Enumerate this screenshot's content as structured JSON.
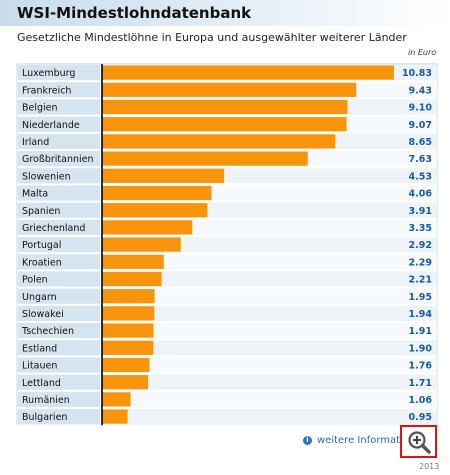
{
  "header": {
    "title": "WSI-Mindestlohndatenbank",
    "subtitle": "Gesetzliche Mindestlöhne in Europa und ausgewählter weiterer Länder",
    "unit": "in Euro"
  },
  "footer": {
    "info_link": "weitere Informat",
    "year": "2013"
  },
  "colors": {
    "bar": "#f7940c",
    "label_bg": "#d6e4f0",
    "row_alt": "#eef3f8",
    "value_text": "#1b5aa0",
    "zoom_border": "#e0101a"
  },
  "icons": [
    "info-icon",
    "zoom-in-icon"
  ],
  "chart_data": {
    "type": "bar",
    "orientation": "horizontal",
    "title": "WSI-Mindestlohndatenbank",
    "subtitle": "Gesetzliche Mindestlöhne in Europa und ausgewählter weiterer Länder",
    "unit": "in Euro",
    "categories": [
      "Luxemburg",
      "Frankreich",
      "Belgien",
      "Niederlande",
      "Irland",
      "Großbritannien",
      "Slowenien",
      "Malta",
      "Spanien",
      "Griechenland",
      "Portugal",
      "Kroatien",
      "Polen",
      "Ungarn",
      "Slowakei",
      "Tschechien",
      "Estland",
      "Litauen",
      "Lettland",
      "Rumänien",
      "Bulgarien"
    ],
    "values": [
      10.83,
      9.43,
      9.1,
      9.07,
      8.65,
      7.63,
      4.53,
      4.06,
      3.91,
      3.35,
      2.92,
      2.29,
      2.21,
      1.95,
      1.94,
      1.91,
      1.9,
      1.76,
      1.71,
      1.06,
      0.95
    ],
    "value_labels": [
      "10.83",
      "9.43",
      "9.10",
      "9.07",
      "8.65",
      "7.63",
      "4.53",
      "4.06",
      "3.91",
      "3.35",
      "2.92",
      "2.29",
      "2.21",
      "1.95",
      "1.94",
      "1.91",
      "1.90",
      "1.76",
      "1.71",
      "1.06",
      "0.95"
    ],
    "xlim": [
      0,
      10.83
    ],
    "grid": false,
    "legend": "none"
  }
}
